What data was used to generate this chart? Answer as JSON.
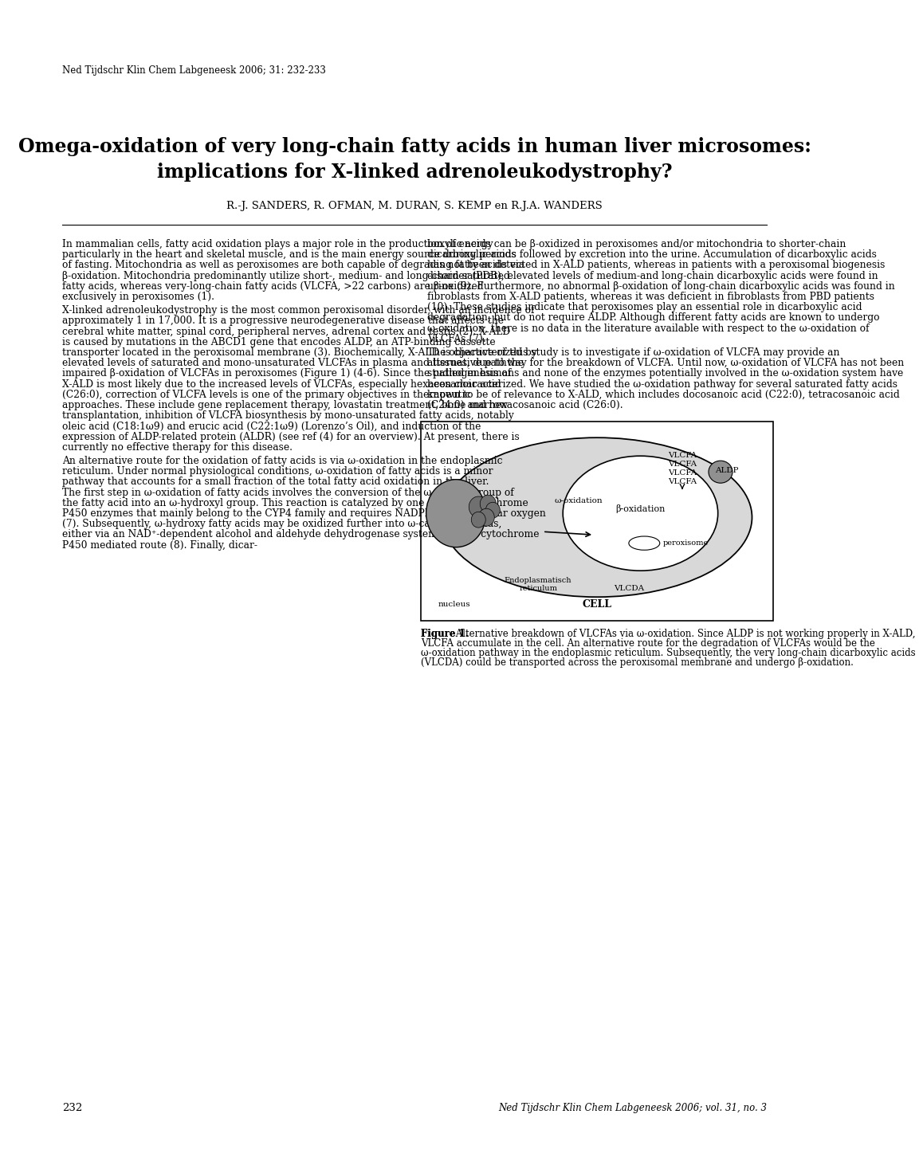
{
  "background_color": "#ffffff",
  "journal_header": "Ned Tijdschr Klin Chem Labgeneesk 2006; 31: 232-233",
  "title_line1": "Omega-oxidation of very long-chain fatty acids in human liver microsomes:",
  "title_line2": "implications for X-linked adrenoleukodystrophy?",
  "authors": "R.-J. SANDERS, R. OFMAN, M. DURAN, S. KEMP en R.J.A. WANDERS",
  "page_number": "232",
  "footer_journal": "Ned Tijdschr Klin Chem Labgeneesk 2006; vol. 31, no. 3",
  "col1_text": [
    {
      "indent": false,
      "text": "In mammalian cells, fatty acid oxidation plays a major role in the production of energy particularly in the heart and skeletal muscle, and is the main energy source during periods of fasting. Mitochondria as well as peroxisomes are both capable of degrading fatty acids via β-oxidation. Mitochondria predominantly utilize short-, medium- and long-chain saturated fatty acids, whereas very-long-chain fatty acids (VLCFA, >22 carbons) are β-oxidized exclusively in peroxisomes (1)."
    },
    {
      "indent": false,
      "text": "X-linked adrenoleukodystrophy is the most common peroxisomal disorder, with an incidence of approximately 1 in 17,000. It is a progressive neurodegenerative disease that affects the cerebral white matter, spinal cord, peripheral nerves, adrenal cortex and testis (2). X-ALD is caused by mutations in the ABCD1 gene that encodes ALDP, an ATP-binding cassette transporter located in the peroxisomal membrane (3). Biochemically, X-ALD is characterized by elevated levels of saturated and mono-unsaturated VLCFAs in plasma and tissues, due to the impaired β-oxidation of VLCFAs in peroxisomes (Figure 1) (4-6). Since the pathogenesis of X-ALD is most likely due to the increased levels of VLCFAs, especially hexacosanoic acid (C26:0), correction of VLCFA levels is one of the primary objectives in therapeutic approaches. These include gene replacement therapy, lovastatin treatment, bone marrow transplantation, inhibition of VLCFA biosynthesis by mono-unsaturated fatty acids, notably oleic acid (C18:1ω9) and erucic acid (C22:1ω9) (Lorenzo’s Oil), and induction of the expression of ALDP-related protein (ALDR) (see ref (4) for an overview). At present, there is currently no effective therapy for this disease."
    },
    {
      "indent": false,
      "text": "An alternative route for the oxidation of fatty acids is via ω-oxidation in the endoplasmic reticulum. Under normal physiological conditions, ω-oxidation of fatty acids is a minor pathway that accounts for a small fraction of the total fatty acid oxidation in the liver. The first step in ω-oxidation of fatty acids involves the conversion of the ω-methyl group of the fatty acid into an ω-hydroxyl group. This reaction is catalyzed by one or more cytochrome P450 enzymes that mainly belong to the CYP4 family and requires NADPH and molecular oxygen (7). Subsequently, ω-hydroxy fatty acids may be oxidized further into ω-carboxylic acids, either via an NAD⁺-dependent alcohol and aldehyde dehydrogenase system or via a cytochrome P450 mediated route (8). Finally, dicar-"
    }
  ],
  "col2_text": [
    {
      "indent": false,
      "text": "boxylic acids can be β-oxidized in peroxisomes and/or mitochondria to shorter-chain dicarboxylic acids followed by excretion into the urine. Accumulation of dicarboxylic acids has not been detected in X-ALD patients, whereas in patients with a peroxisomal biogenesis disorder (PDB), elevated levels of medium-and long-chain dicarboxylic acids were found in urine (9). Furthermore, no abnormal β-oxidation of long-chain dicarboxylic acids was found in fibroblasts from X-ALD patients, whereas it was deficient in fibroblasts from PBD patients (10). These studies indicate that peroxisomes play an essential role in dicarboxylic acid degradation, but do not require ALDP. Although different fatty acids are known to undergo ω-oxidation, there is no data in the literature available with respect to the ω-oxidation of VLCFAs (7)."
    },
    {
      "indent": false,
      "text": "The objective of this study is to investigate if ω-oxidation of VLCFA may provide an alternative pathway for the breakdown of VLCFA. Until now, ω-oxidation of VLCFA has not been studied in humans and none of the enzymes potentially involved in the ω-oxidation system have been characterized. We have studied the ω-oxidation pathway for several saturated fatty acids known to be of relevance to X-ALD, which includes docosanoic acid (C22:0), tetracosanoic acid (C24:0) and hexacosanoic acid (C26:0)."
    }
  ],
  "figure_caption_bold": "Figure 1.",
  "figure_caption_rest": " Alternative breakdown of VLCFAs via ω-oxidation. Since ALDP is not working properly in X-ALD, VLCFA accumulate in the cell. An alternative route for the degradation of VLCFAs would be the ω-oxidation pathway in the endoplasmic reticulum. Subsequently, the very long-chain dicarboxylic acids (VLCDA) could be transported across the peroxisomal membrane and undergo β-oxidation."
}
